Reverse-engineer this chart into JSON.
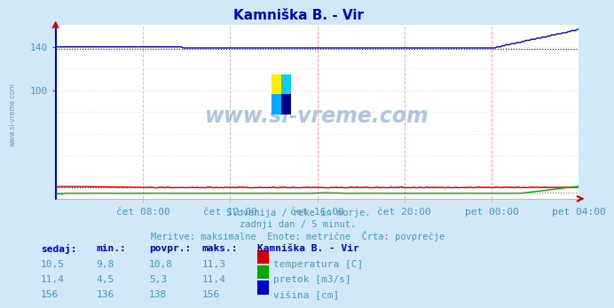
{
  "title": "Kamniška B. - Vir",
  "bg_color": "#d0e8f8",
  "plot_bg_color": "#ffffff",
  "title_color": "#0000cc",
  "x_label_color": "#4499bb",
  "y_label_color": "#4499bb",
  "watermark_text": "www.si-vreme.com",
  "subtitle_lines": [
    "Slovenija / reke in morje.",
    "zadnji dan / 5 minut.",
    "Meritve: maksimalne  Enote: metrične  Črta: povprečje"
  ],
  "x_ticks_labels": [
    "čet 08:00",
    "čet 12:00",
    "čet 16:00",
    "čet 20:00",
    "pet 00:00",
    "pet 04:00"
  ],
  "x_ticks_pos": [
    0.1667,
    0.3333,
    0.5,
    0.6667,
    0.8333,
    1.0
  ],
  "y_ticks_show": [
    100,
    140
  ],
  "ylim": [
    0,
    160
  ],
  "temperatura_color": "#cc0000",
  "pretok_color": "#00aa00",
  "visina_color": "#0000cc",
  "visina_avg": 138,
  "temperatura_avg": 10.8,
  "pretok_avg": 5.3,
  "table_header": [
    "sedaj:",
    "min.:",
    "povpr.:",
    "maks.:",
    "Kamniška B. - Vir"
  ],
  "table_rows": [
    [
      "10,5",
      "9,8",
      "10,8",
      "11,3",
      "temperatura [C]"
    ],
    [
      "11,4",
      "4,5",
      "5,3",
      "11,4",
      "pretok [m3/s]"
    ],
    [
      "156",
      "136",
      "138",
      "156",
      "višina [cm]"
    ]
  ],
  "row_colors": [
    "#cc0000",
    "#00aa00",
    "#0000cc"
  ],
  "side_watermark": "www.si-vreme.com",
  "logo_colors": [
    "#ffee00",
    "#00ccff",
    "#00aaff",
    "#000088"
  ],
  "vgrid_color": "#ffaaaa",
  "hgrid_color": "#ffcccc"
}
